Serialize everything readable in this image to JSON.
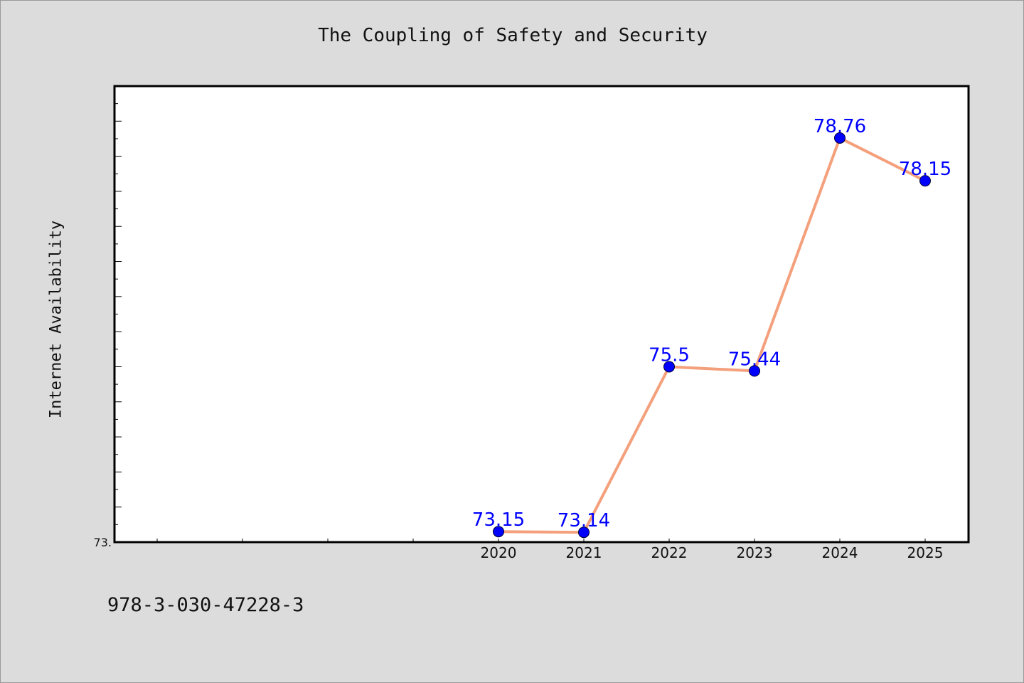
{
  "chart_data": {
    "type": "line",
    "title": "The Coupling of Safety and Security",
    "ylabel": "Internet Availability",
    "xlabel": "",
    "x": [
      "2020",
      "2021",
      "2022",
      "2023",
      "2024",
      "2025"
    ],
    "series": [
      {
        "values": [
          73.15,
          73.14,
          75.5,
          75.44,
          78.76,
          78.15
        ],
        "data_labels": [
          "73.15",
          "73.14",
          "75.5",
          "75.44",
          "78.76",
          "78.15"
        ],
        "line_color": "#f4a07c",
        "marker_color": "#0000ff"
      }
    ],
    "y_tick_labels": [
      "73."
    ],
    "ylim": [
      73.0,
      79.5
    ],
    "x_category_slots": 10,
    "grid": false,
    "background": "#dcdcdc",
    "plot_background": "#ffffff"
  },
  "footnote": "978-3-030-47228-3"
}
